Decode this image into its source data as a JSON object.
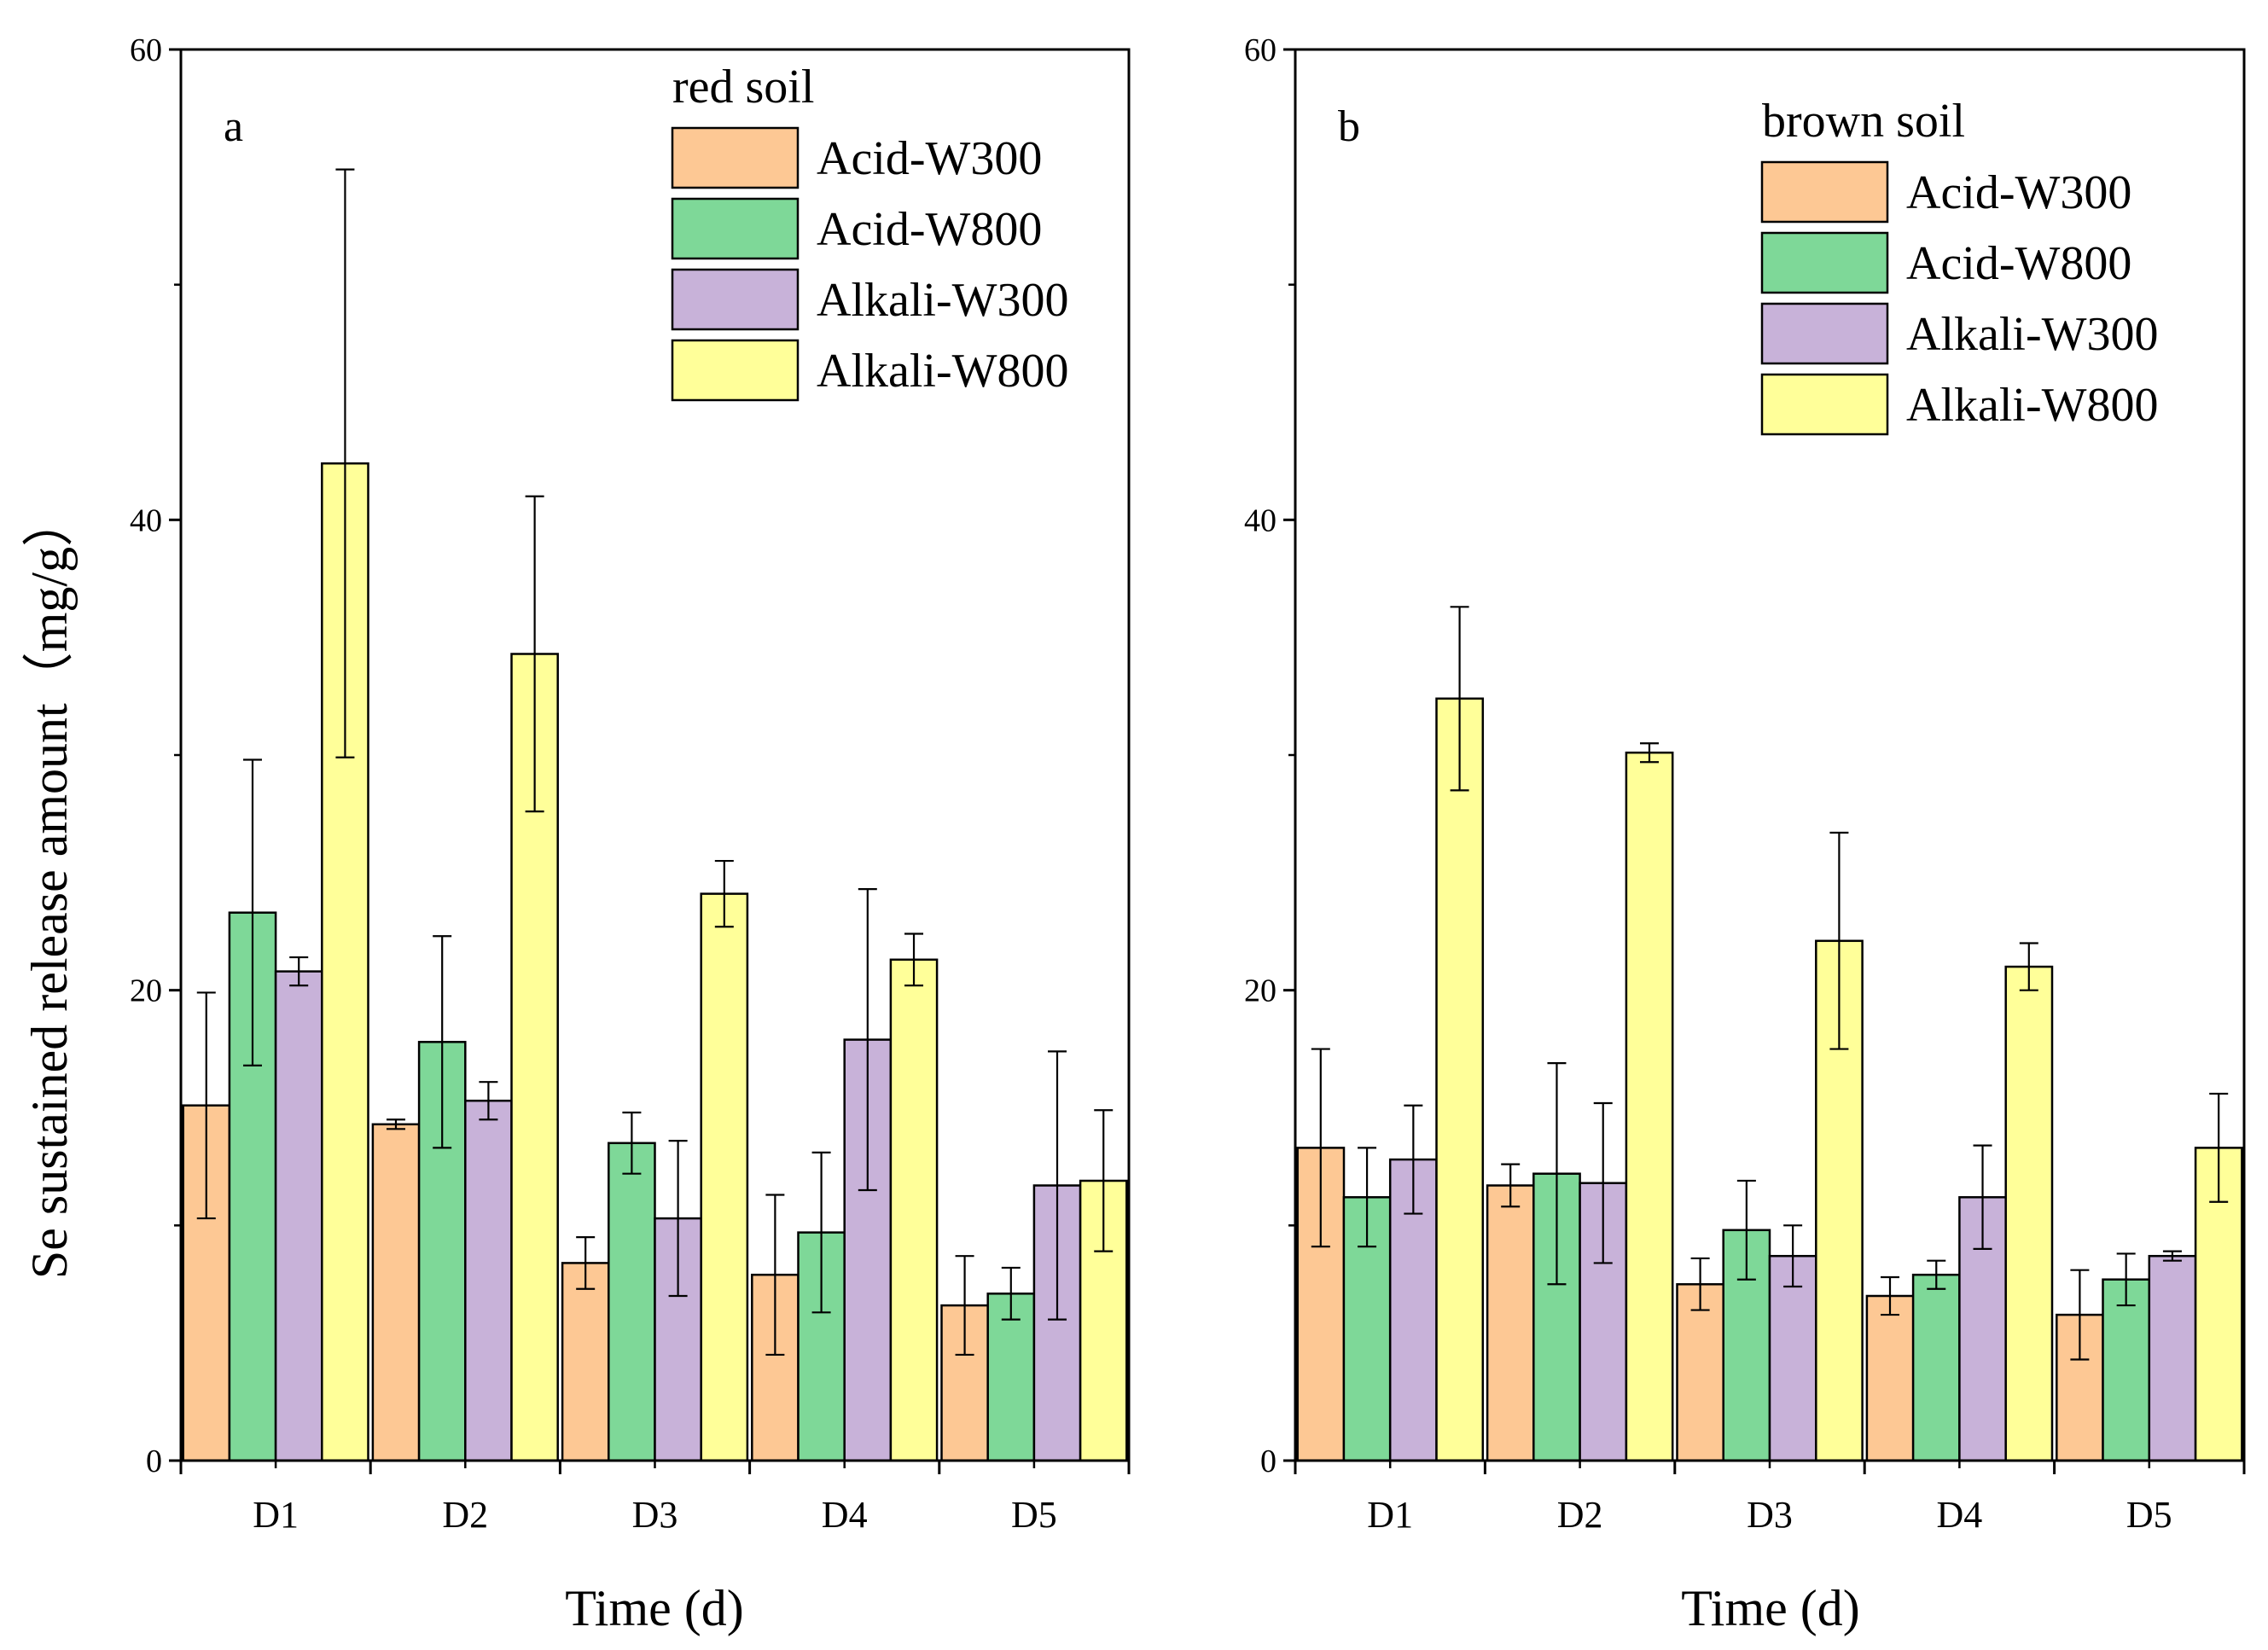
{
  "figure": {
    "ylabel": "Se sustained release amount（mg/g）",
    "xlabel": "Time (d)"
  },
  "chart_data": [
    {
      "type": "bar",
      "panel_label": "a",
      "legend_title": "red soil",
      "categories": [
        "D1",
        "D2",
        "D3",
        "D4",
        "D5"
      ],
      "xlabel": "Time (d)",
      "ylabel": "Se sustained release amount（mg/g）",
      "ylim": [
        0,
        60
      ],
      "yticks": [
        0,
        20,
        40,
        60
      ],
      "grid": false,
      "legend_position": "top-right",
      "series": [
        {
          "name": "Acid-W300",
          "color": "#FDC894",
          "values": [
            15.1,
            14.3,
            8.4,
            7.9,
            6.6
          ],
          "errors": [
            4.8,
            0.2,
            1.1,
            3.4,
            2.1
          ]
        },
        {
          "name": "Acid-W800",
          "color": "#7ED898",
          "values": [
            23.3,
            17.8,
            13.5,
            9.7,
            7.1
          ],
          "errors": [
            6.5,
            4.5,
            1.3,
            3.4,
            1.1
          ]
        },
        {
          "name": "Alkali-W300",
          "color": "#C8B2D9",
          "values": [
            20.8,
            15.3,
            10.3,
            17.9,
            11.7
          ],
          "errors": [
            0.6,
            0.8,
            3.3,
            6.4,
            5.7
          ]
        },
        {
          "name": "Alkali-W800",
          "color": "#FFFF99",
          "values": [
            42.4,
            34.3,
            24.1,
            21.3,
            11.9
          ],
          "errors": [
            12.5,
            6.7,
            1.4,
            1.1,
            3.0
          ]
        }
      ]
    },
    {
      "type": "bar",
      "panel_label": "b",
      "legend_title": "brown soil",
      "categories": [
        "D1",
        "D2",
        "D3",
        "D4",
        "D5"
      ],
      "xlabel": "Time (d)",
      "ylabel": "",
      "ylim": [
        0,
        60
      ],
      "yticks": [
        0,
        20,
        40,
        60
      ],
      "grid": false,
      "legend_position": "top-right",
      "series": [
        {
          "name": "Acid-W300",
          "color": "#FDC894",
          "values": [
            13.3,
            11.7,
            7.5,
            7.0,
            6.2
          ],
          "errors": [
            4.2,
            0.9,
            1.1,
            0.8,
            1.9
          ]
        },
        {
          "name": "Acid-W800",
          "color": "#7ED898",
          "values": [
            11.2,
            12.2,
            9.8,
            7.9,
            7.7
          ],
          "errors": [
            2.1,
            4.7,
            2.1,
            0.6,
            1.1
          ]
        },
        {
          "name": "Alkali-W300",
          "color": "#C8B2D9",
          "values": [
            12.8,
            11.8,
            8.7,
            11.2,
            8.7
          ],
          "errors": [
            2.3,
            3.4,
            1.3,
            2.2,
            0.2
          ]
        },
        {
          "name": "Alkali-W800",
          "color": "#FFFF99",
          "values": [
            32.4,
            30.1,
            22.1,
            21.0,
            13.3
          ],
          "errors": [
            3.9,
            0.4,
            4.6,
            1.0,
            2.3
          ]
        }
      ]
    }
  ]
}
